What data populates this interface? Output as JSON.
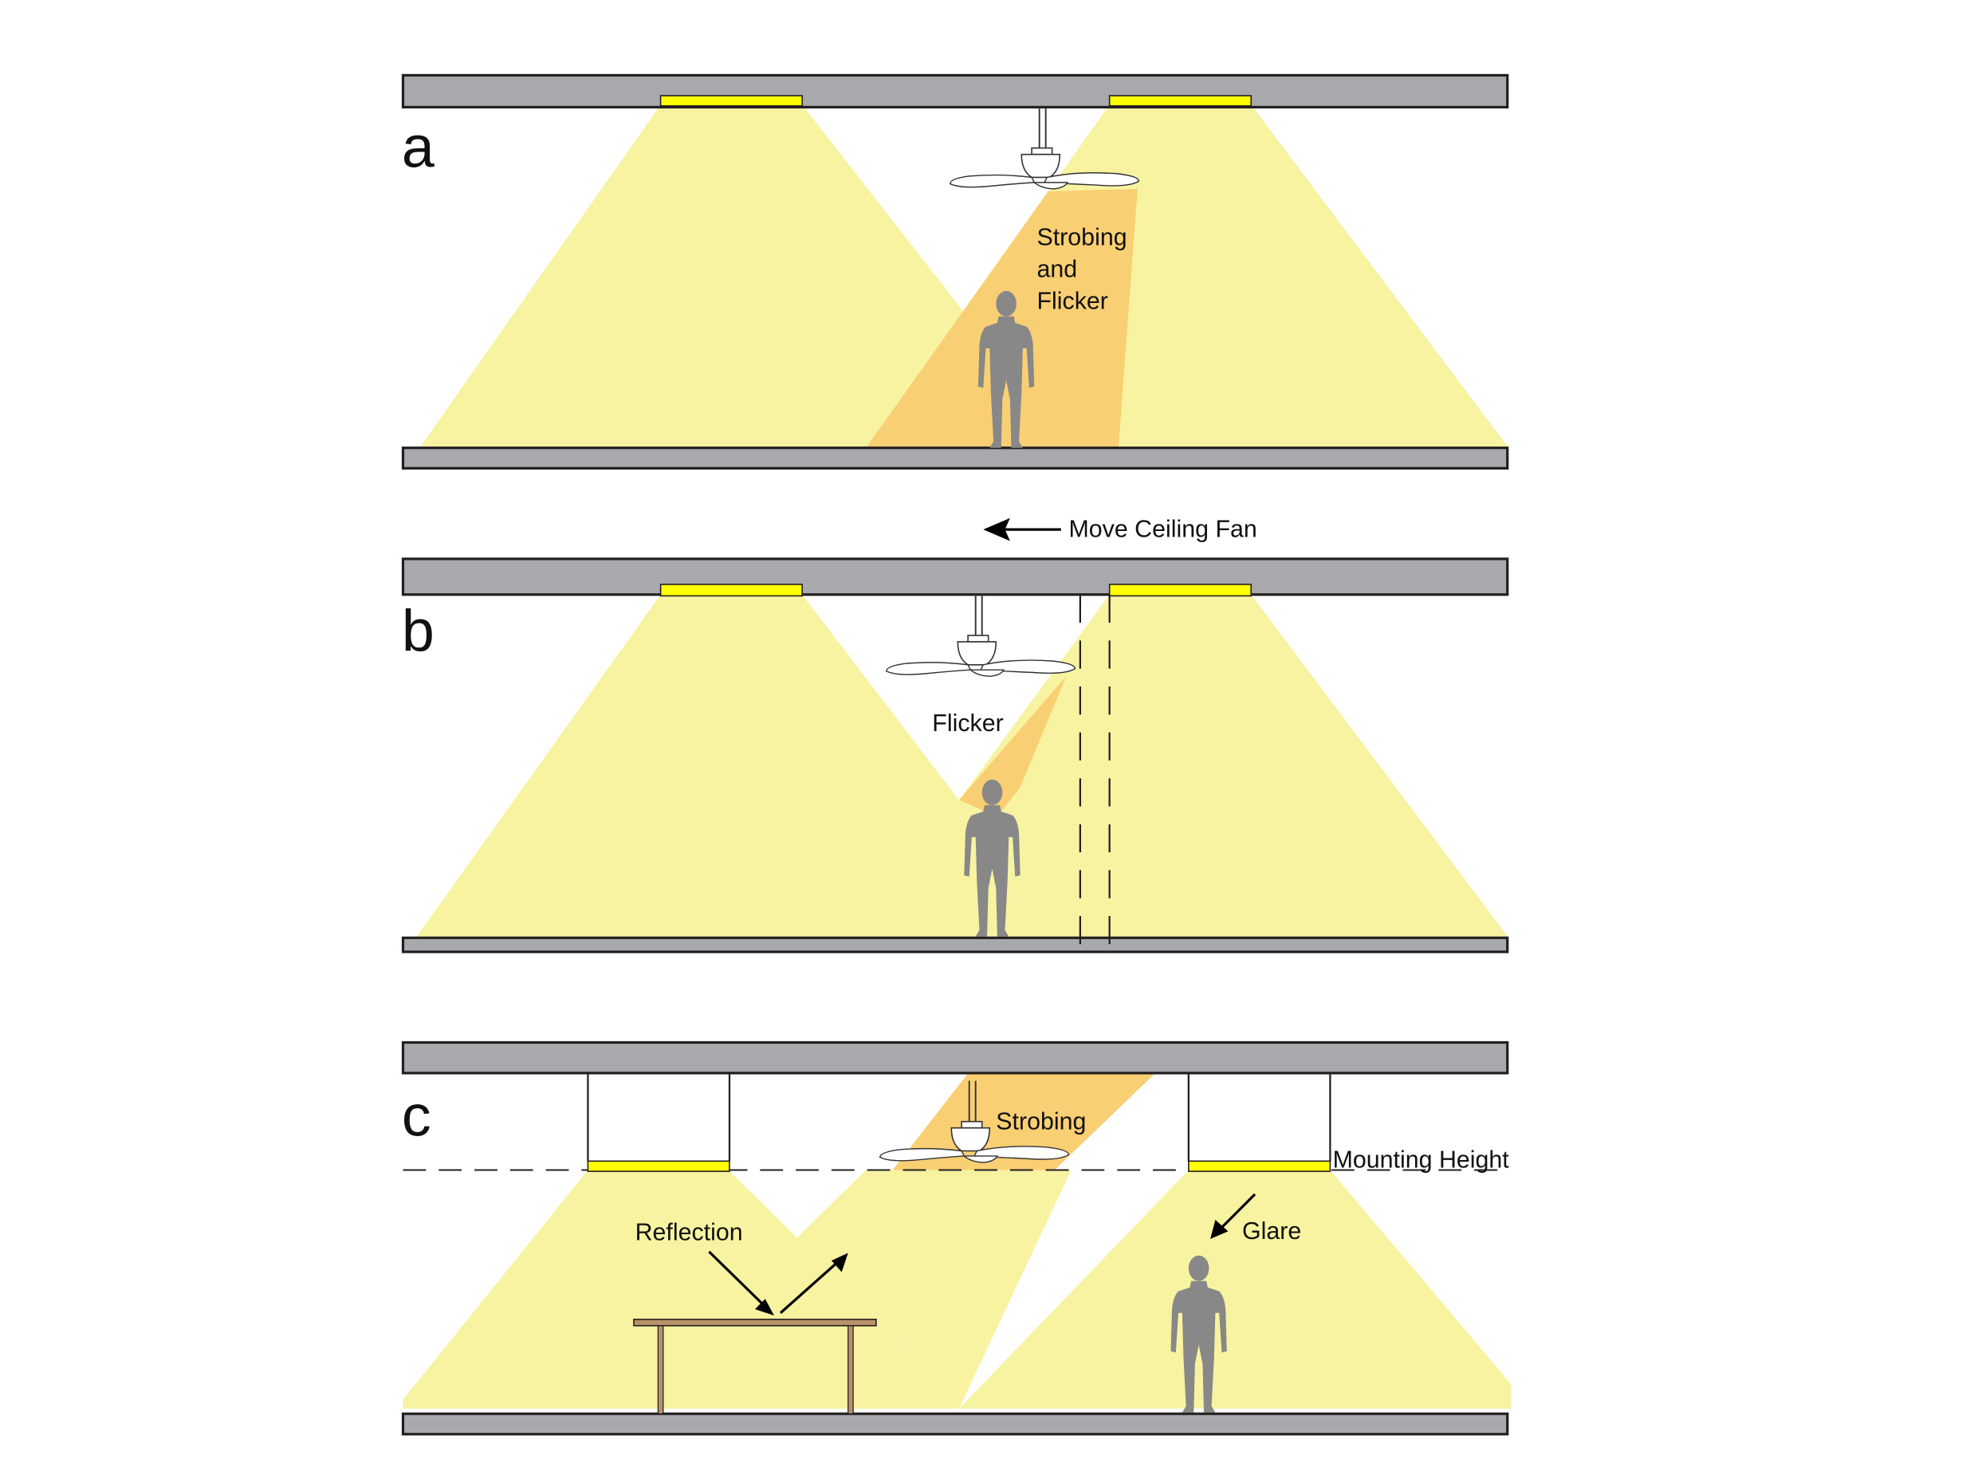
{
  "panels": {
    "a": {
      "letter": "a",
      "label_line1": "Strobing",
      "label_line2": "and",
      "label_line3": "Flicker"
    },
    "b": {
      "letter": "b",
      "label": "Flicker",
      "arrow_label": "Move Ceiling Fan"
    },
    "c": {
      "letter": "c",
      "strobing": "Strobing",
      "mounting_height": "Mounting Height",
      "reflection": "Reflection",
      "glare": "Glare"
    }
  },
  "colors": {
    "light_cone": "#f8f3a1",
    "shadow_overlap": "#f9cf73",
    "fixture": "#ffff00",
    "slab": "#a7a9ac",
    "person": "#888888",
    "outline": "#231f20",
    "table": "#b7916a"
  },
  "icons": [
    "ceiling-fan-icon",
    "person-icon",
    "table-icon",
    "arrow-icon"
  ]
}
